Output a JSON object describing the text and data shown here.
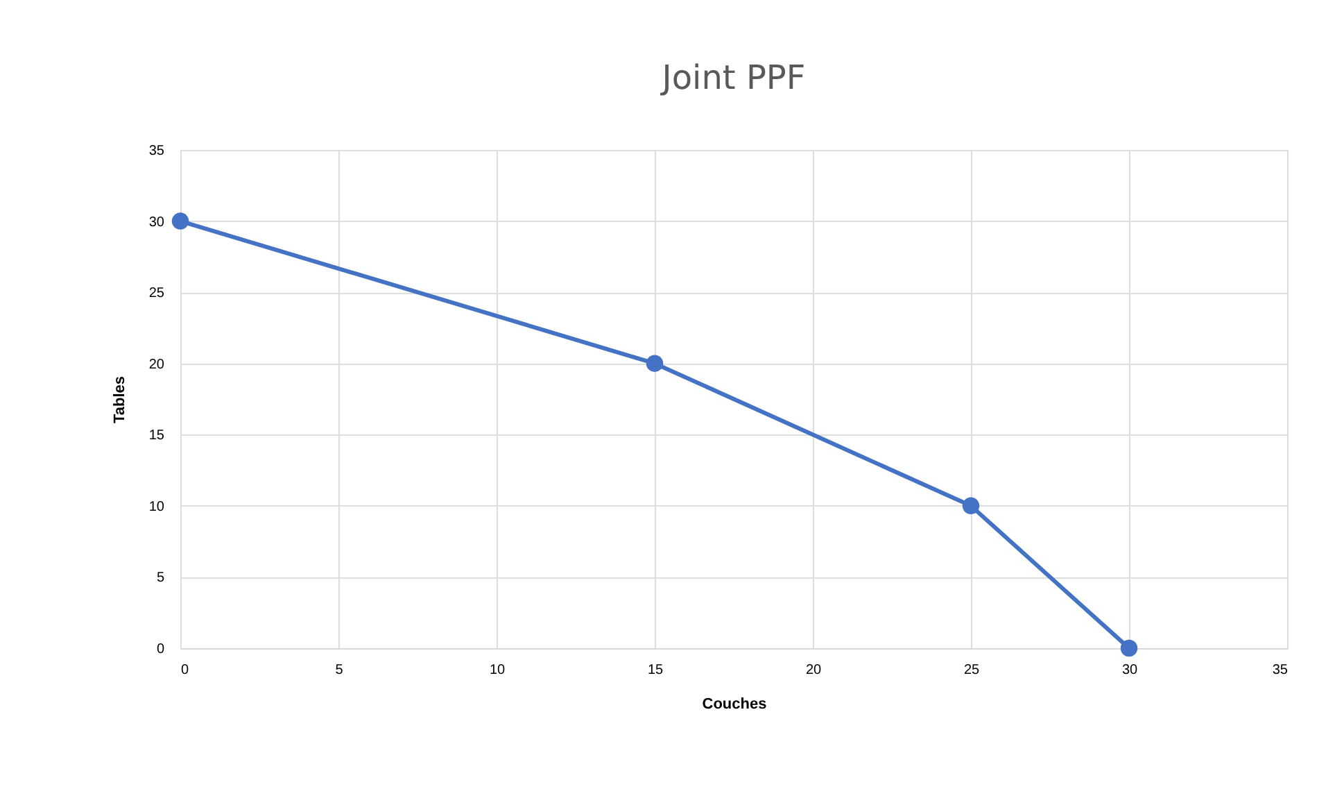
{
  "chart_data": {
    "type": "line",
    "title": "Joint PPF",
    "xlabel": "Couches",
    "ylabel": "Tables",
    "x": [
      0,
      15,
      25,
      30
    ],
    "series": [
      {
        "color": "#4472c4",
        "values": [
          30,
          20,
          10,
          0
        ]
      }
    ],
    "xlim": [
      0,
      35
    ],
    "ylim": [
      0,
      35
    ],
    "xticks": [
      0,
      5,
      10,
      15,
      20,
      25,
      30,
      35
    ],
    "yticks": [
      0,
      5,
      10,
      15,
      20,
      25,
      30,
      35
    ],
    "grid": true,
    "marker": "circle",
    "line_style": "solid"
  }
}
